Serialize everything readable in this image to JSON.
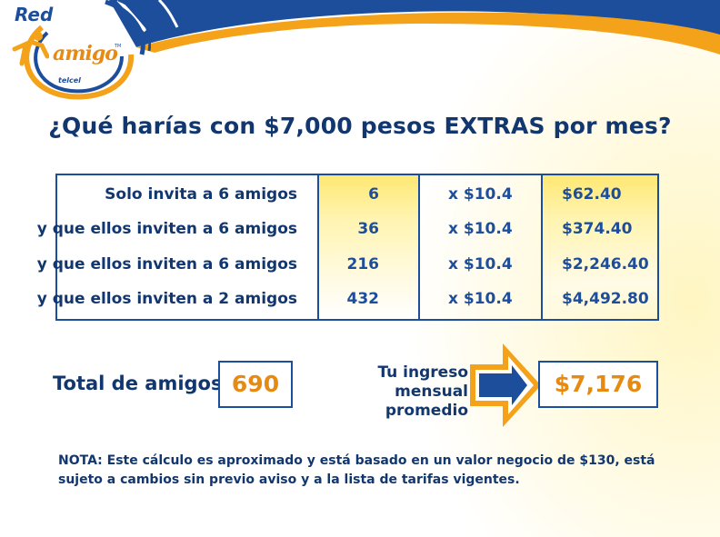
{
  "logo": {
    "red": "Red",
    "amigo": "amigo",
    "tm": "TM",
    "brand": "telcel"
  },
  "title": "¿Qué harías con $7,000 pesos EXTRAS por mes?",
  "table": {
    "rows": [
      {
        "label": "Solo invita a 6 amigos",
        "count": "6",
        "rate": "x $10.4",
        "result": "$62.40"
      },
      {
        "label": "y que ellos inviten a 6 amigos",
        "count": "36",
        "rate": "x $10.4",
        "result": "$374.40"
      },
      {
        "label": "y que ellos inviten a 6 amigos",
        "count": "216",
        "rate": "x $10.4",
        "result": "$2,246.40"
      },
      {
        "label": "y que ellos inviten a 2 amigos",
        "count": "432",
        "rate": "x $10.4",
        "result": "$4,492.80"
      }
    ]
  },
  "summary": {
    "total_label": "Total de amigos",
    "total_value": "690",
    "income_label_line1": "Tu ingreso mensual",
    "income_label_line2": "promedio",
    "income_value": "$7,176"
  },
  "note": "NOTA: Este cálculo es aproximado y está basado en un valor negocio de $130, está sujeto a cambios sin previo aviso y a la lista de tarifas vigentes.",
  "colors": {
    "navy": "#12376f",
    "blue": "#1d4e9c",
    "orange": "#e68a12",
    "yellow": "#ffe873"
  },
  "icons": [
    "top-swoosh-graphic",
    "logo-ring-graphic",
    "runner-figure-icon",
    "arrow-right-icon"
  ]
}
